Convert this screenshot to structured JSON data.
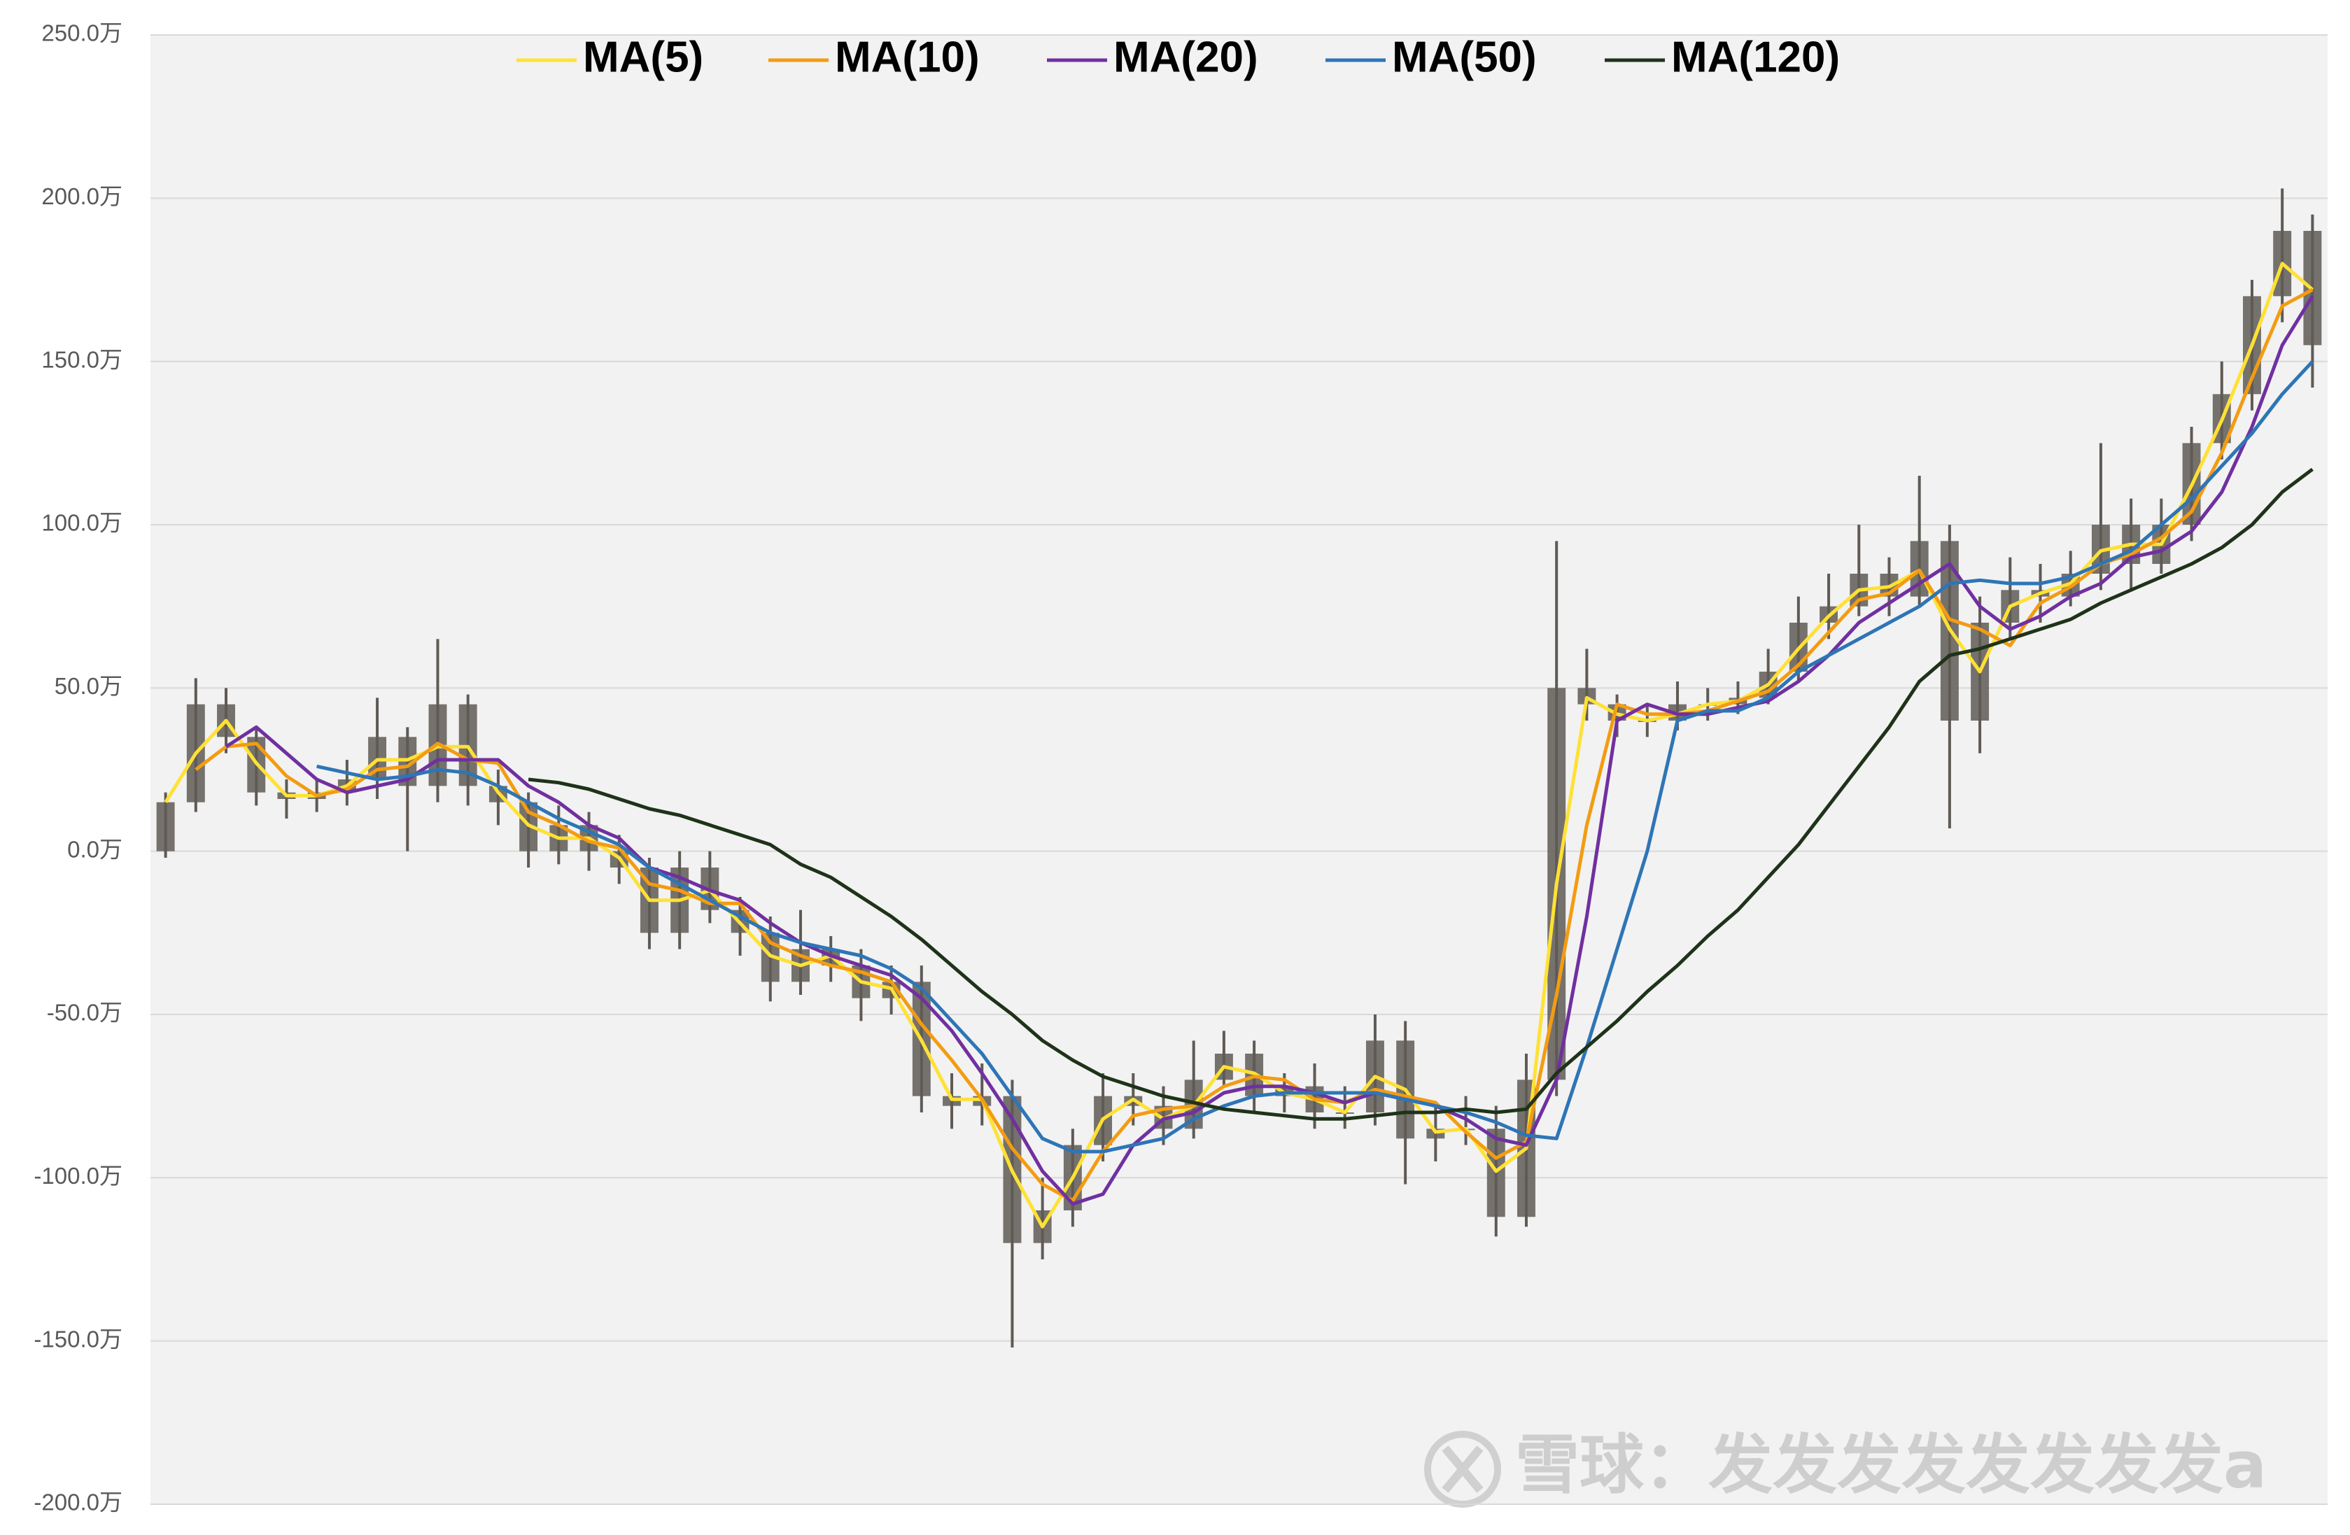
{
  "chart_data": {
    "type": "candlestick",
    "ylim": [
      -200,
      250
    ],
    "yticks": [
      {
        "value": -200,
        "label": "-200.0万"
      },
      {
        "value": -150,
        "label": "-150.0万"
      },
      {
        "value": -100,
        "label": "-100.0万"
      },
      {
        "value": -50,
        "label": "-50.0万"
      },
      {
        "value": 0,
        "label": "0.0万"
      },
      {
        "value": 50,
        "label": "50.0万"
      },
      {
        "value": 100,
        "label": "100.0万"
      },
      {
        "value": 150,
        "label": "150.0万"
      },
      {
        "value": 200,
        "label": "200.0万"
      },
      {
        "value": 250,
        "label": "250.0万"
      }
    ],
    "grid": true,
    "candle_color": "#5f5a55",
    "open": [
      0,
      15,
      45,
      35,
      18,
      16,
      18,
      22,
      35,
      20,
      45,
      20,
      15,
      0,
      8,
      0,
      -5,
      -25,
      -5,
      -18,
      -25,
      -40,
      -30,
      -35,
      -45,
      -40,
      -75,
      -78,
      -75,
      -120,
      -110,
      -90,
      -75,
      -78,
      -85,
      -70,
      -62,
      -75,
      -72,
      -80,
      -80,
      -58,
      -88,
      -85,
      -85,
      -112,
      -70,
      50,
      45,
      40,
      40,
      45,
      45,
      47,
      55,
      70,
      75,
      85,
      78,
      95,
      40,
      70,
      80,
      78,
      85,
      100,
      88,
      100,
      125,
      140,
      170,
      190
    ],
    "high": [
      18,
      53,
      50,
      38,
      22,
      22,
      28,
      47,
      38,
      65,
      48,
      25,
      18,
      14,
      12,
      5,
      -2,
      0,
      0,
      -14,
      -20,
      -18,
      -26,
      -30,
      -35,
      -35,
      -68,
      -65,
      -70,
      -100,
      -85,
      -68,
      -68,
      -72,
      -58,
      -55,
      -58,
      -68,
      -65,
      -72,
      -50,
      -52,
      -78,
      -75,
      -78,
      -62,
      95,
      62,
      48,
      45,
      52,
      50,
      52,
      62,
      78,
      85,
      100,
      90,
      115,
      100,
      78,
      90,
      88,
      92,
      125,
      108,
      108,
      130,
      150,
      175,
      203,
      195
    ],
    "low": [
      -2,
      12,
      30,
      14,
      10,
      12,
      14,
      16,
      0,
      15,
      14,
      8,
      -5,
      -4,
      -6,
      -10,
      -30,
      -30,
      -22,
      -32,
      -46,
      -44,
      -40,
      -52,
      -50,
      -80,
      -85,
      -84,
      -152,
      -125,
      -115,
      -95,
      -84,
      -90,
      -88,
      -72,
      -80,
      -80,
      -85,
      -85,
      -84,
      -102,
      -95,
      -90,
      -118,
      -115,
      -75,
      40,
      35,
      35,
      37,
      40,
      42,
      45,
      52,
      65,
      72,
      72,
      75,
      7,
      30,
      65,
      70,
      75,
      80,
      80,
      85,
      95,
      120,
      135,
      162,
      142
    ],
    "close": [
      15,
      45,
      35,
      18,
      16,
      18,
      22,
      35,
      20,
      45,
      20,
      15,
      0,
      8,
      0,
      -5,
      -25,
      -5,
      -18,
      -25,
      -40,
      -30,
      -35,
      -45,
      -40,
      -75,
      -78,
      -75,
      -120,
      -110,
      -90,
      -75,
      -78,
      -85,
      -70,
      -62,
      -75,
      -72,
      -80,
      -80,
      -58,
      -88,
      -85,
      -85,
      -112,
      -70,
      50,
      45,
      40,
      40,
      45,
      45,
      47,
      55,
      70,
      75,
      85,
      78,
      95,
      40,
      70,
      80,
      78,
      85,
      100,
      88,
      100,
      125,
      140,
      170,
      190,
      155
    ],
    "series": [
      {
        "name": "MA(5)",
        "color": "#ffe135",
        "values": [
          15,
          30,
          40,
          27,
          17,
          17,
          20,
          28,
          28,
          32,
          32,
          18,
          8,
          4,
          4,
          -2,
          -15,
          -15,
          -12,
          -22,
          -32,
          -35,
          -32,
          -40,
          -42,
          -58,
          -76,
          -76,
          -98,
          -115,
          -100,
          -82,
          -76,
          -82,
          -78,
          -66,
          -68,
          -74,
          -76,
          -80,
          -69,
          -73,
          -86,
          -85,
          -98,
          -91,
          -10,
          47,
          42,
          40,
          42,
          45,
          46,
          51,
          62,
          72,
          80,
          81,
          86,
          68,
          55,
          75,
          79,
          82,
          92,
          94,
          94,
          112,
          132,
          155,
          180,
          172
        ]
      },
      {
        "name": "MA(10)",
        "color": "#f39c12",
        "values": [
          null,
          25,
          32,
          33,
          23,
          17,
          19,
          25,
          26,
          33,
          28,
          27,
          12,
          8,
          3,
          1,
          -10,
          -12,
          -16,
          -16,
          -28,
          -32,
          -35,
          -37,
          -40,
          -53,
          -64,
          -76,
          -91,
          -102,
          -107,
          -92,
          -81,
          -79,
          -78,
          -72,
          -69,
          -70,
          -76,
          -77,
          -73,
          -75,
          -77,
          -86,
          -94,
          -89,
          -44,
          8,
          45,
          42,
          42,
          43,
          46,
          49,
          57,
          67,
          77,
          79,
          86,
          71,
          68,
          63,
          76,
          81,
          88,
          91,
          96,
          104,
          122,
          145,
          167,
          172
        ]
      },
      {
        "name": "MA(20)",
        "color": "#7030a0",
        "values": [
          null,
          null,
          32,
          38,
          30,
          22,
          18,
          20,
          22,
          28,
          28,
          28,
          20,
          15,
          8,
          4,
          -5,
          -8,
          -12,
          -15,
          -22,
          -28,
          -32,
          -35,
          -38,
          -45,
          -55,
          -68,
          -82,
          -98,
          -108,
          -105,
          -90,
          -82,
          -80,
          -74,
          -72,
          -72,
          -74,
          -77,
          -74,
          -76,
          -78,
          -82,
          -88,
          -90,
          -70,
          -20,
          40,
          45,
          42,
          42,
          44,
          46,
          52,
          60,
          70,
          76,
          82,
          88,
          75,
          68,
          72,
          78,
          82,
          90,
          92,
          98,
          110,
          130,
          155,
          170
        ]
      },
      {
        "name": "MA(50)",
        "color": "#2e75b6",
        "values": [
          null,
          null,
          null,
          null,
          null,
          26,
          24,
          22,
          23,
          25,
          24,
          20,
          15,
          10,
          6,
          2,
          -5,
          -10,
          -15,
          -20,
          -25,
          -28,
          -30,
          -32,
          -36,
          -42,
          -52,
          -62,
          -75,
          -88,
          -92,
          -92,
          -90,
          -88,
          -82,
          -78,
          -75,
          -74,
          -74,
          -74,
          -74,
          -76,
          -78,
          -80,
          -83,
          -87,
          -88,
          -60,
          -30,
          0,
          40,
          43,
          43,
          47,
          55,
          60,
          65,
          70,
          75,
          82,
          83,
          82,
          82,
          84,
          88,
          92,
          100,
          108,
          118,
          128,
          140,
          150
        ]
      },
      {
        "name": "MA(120)",
        "color": "#1e3319",
        "values": [
          null,
          null,
          null,
          null,
          null,
          null,
          null,
          null,
          null,
          null,
          null,
          null,
          22,
          21,
          19,
          16,
          13,
          11,
          8,
          5,
          2,
          -4,
          -8,
          -14,
          -20,
          -27,
          -35,
          -43,
          -50,
          -58,
          -64,
          -69,
          -72,
          -75,
          -77,
          -79,
          -80,
          -81,
          -82,
          -82,
          -81,
          -80,
          -80,
          -79,
          -80,
          -79,
          -68,
          -60,
          -52,
          -43,
          -35,
          -26,
          -18,
          -8,
          2,
          14,
          26,
          38,
          52,
          60,
          62,
          65,
          68,
          71,
          76,
          80,
          84,
          88,
          93,
          100,
          110,
          117
        ]
      }
    ],
    "watermark": "雪球：发发发发发发发发a"
  }
}
